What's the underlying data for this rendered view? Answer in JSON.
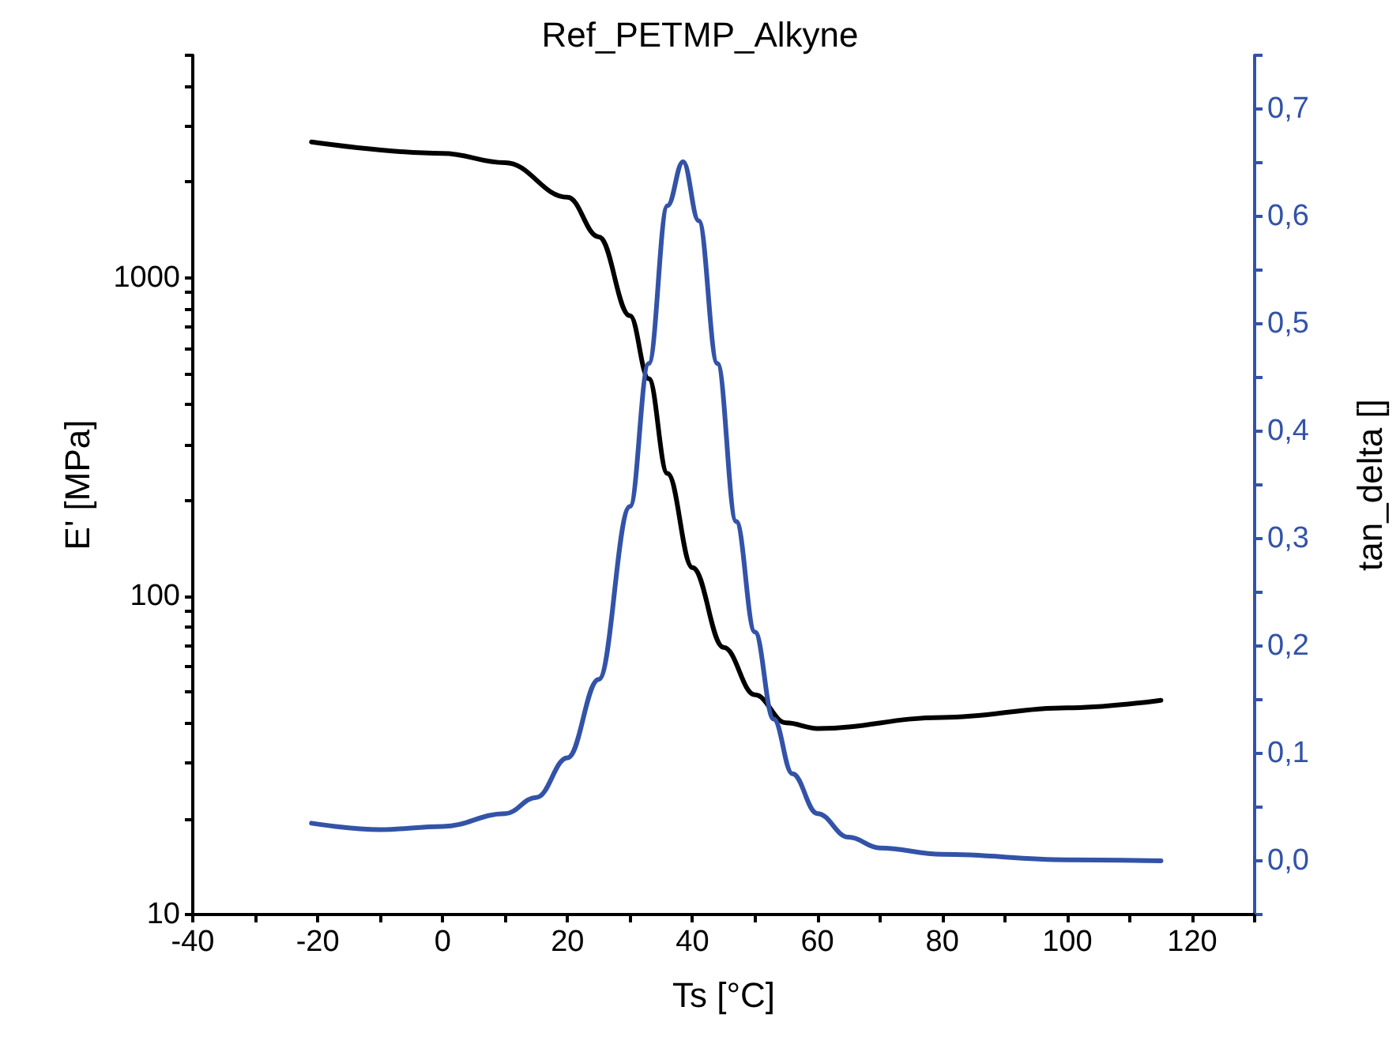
{
  "chart_data": {
    "type": "line",
    "title": "Ref_PETMP_Alkyne",
    "xlabel": "Ts [°C]",
    "ylabel": "E' [MPa]",
    "y2label": "tan_delta []",
    "log": "y",
    "grid": false,
    "marker": "none",
    "line_style": "solid",
    "xlim": [
      -40,
      130
    ],
    "xticks": [
      -40,
      {
        "value": -30,
        "label": null
      },
      -20,
      {
        "value": -10,
        "label": null
      },
      0,
      {
        "value": 10,
        "label": null
      },
      20,
      {
        "value": 30,
        "label": null
      },
      40,
      {
        "value": 50,
        "label": null
      },
      60,
      {
        "value": 70,
        "label": null
      },
      80,
      {
        "value": 90,
        "label": null
      },
      100,
      {
        "value": 110,
        "label": null
      },
      120,
      {
        "value": 130,
        "label": null
      }
    ],
    "ylim": [
      10,
      5000
    ],
    "yticks": [
      10,
      {
        "value": 20,
        "label": null
      },
      {
        "value": 30,
        "label": null
      },
      {
        "value": 40,
        "label": null
      },
      {
        "value": 50,
        "label": null
      },
      {
        "value": 60,
        "label": null
      },
      {
        "value": 70,
        "label": null
      },
      {
        "value": 80,
        "label": null
      },
      {
        "value": 90,
        "label": null
      },
      100,
      {
        "value": 200,
        "label": null
      },
      {
        "value": 300,
        "label": null
      },
      {
        "value": 400,
        "label": null
      },
      {
        "value": 500,
        "label": null
      },
      {
        "value": 600,
        "label": null
      },
      {
        "value": 700,
        "label": null
      },
      {
        "value": 800,
        "label": null
      },
      {
        "value": 900,
        "label": null
      },
      1000,
      {
        "value": 2000,
        "label": null
      },
      {
        "value": 3000,
        "label": null
      },
      {
        "value": 4000,
        "label": null
      },
      {
        "value": 5000,
        "label": null
      }
    ],
    "y2lim": [
      -0.05,
      0.75
    ],
    "y2ticks": [
      {
        "value": -0.05,
        "label": null
      },
      {
        "value": 0,
        "label": "0,0"
      },
      {
        "value": 0.05,
        "label": null
      },
      {
        "value": 0.1,
        "label": "0,1"
      },
      {
        "value": 0.15,
        "label": null
      },
      {
        "value": 0.2,
        "label": "0,2"
      },
      {
        "value": 0.25,
        "label": null
      },
      {
        "value": 0.3,
        "label": "0,3"
      },
      {
        "value": 0.35,
        "label": null
      },
      {
        "value": 0.4,
        "label": "0,4"
      },
      {
        "value": 0.45,
        "label": null
      },
      {
        "value": 0.5,
        "label": "0,5"
      },
      {
        "value": 0.55,
        "label": null
      },
      {
        "value": 0.6,
        "label": "0,6"
      },
      {
        "value": 0.65,
        "label": null
      },
      {
        "value": 0.7,
        "label": "0,7"
      },
      {
        "value": 0.75,
        "label": null
      }
    ],
    "series": [
      {
        "color": "#000000",
        "x": [
          -21,
          0,
          10,
          20,
          25,
          30,
          33,
          36,
          40,
          45,
          50,
          55,
          60,
          80,
          100,
          115
        ],
        "values": [
          2670,
          2460,
          2300,
          1790,
          1345,
          760,
          482,
          243,
          123,
          69,
          49,
          40,
          38.4,
          41.6,
          44.6,
          47.1
        ]
      },
      {
        "color": "#3353a8",
        "axis": "y2",
        "x": [
          -21,
          -10,
          0,
          10,
          15,
          20,
          25,
          30,
          33,
          36,
          38.5,
          41,
          44,
          47,
          50,
          53,
          56,
          60,
          65,
          70,
          80,
          100,
          115
        ],
        "values": [
          0.035,
          0.029,
          0.032,
          0.044,
          0.059,
          0.096,
          0.169,
          0.33,
          0.463,
          0.61,
          0.651,
          0.596,
          0.463,
          0.316,
          0.213,
          0.132,
          0.081,
          0.044,
          0.022,
          0.012,
          0.006,
          0.001,
          0
        ]
      }
    ]
  }
}
